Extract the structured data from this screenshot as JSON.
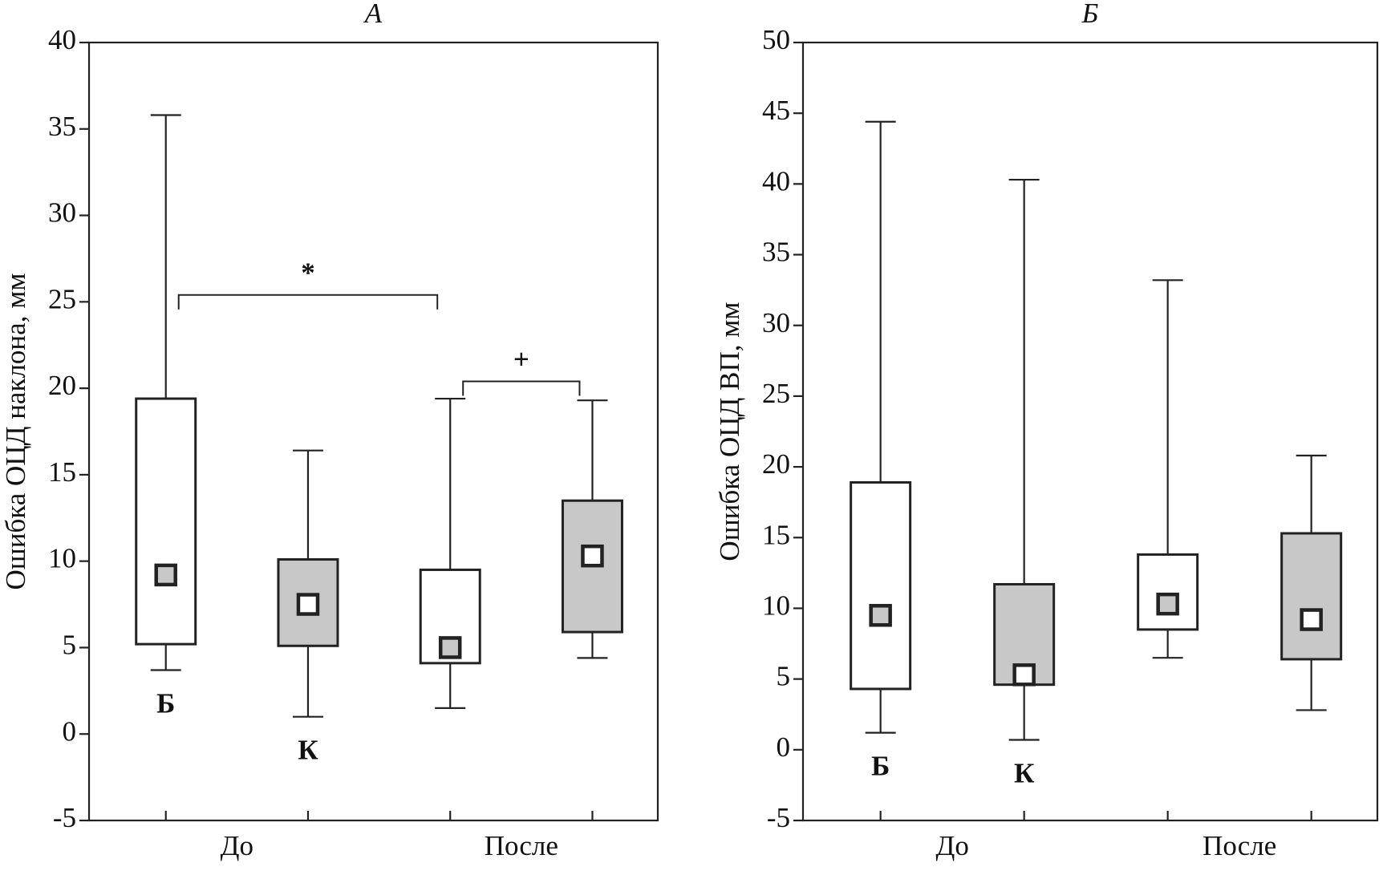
{
  "chart_data": [
    {
      "type": "box",
      "title": "А",
      "y_label": "Ошибка ОЦД наклона, мм",
      "categories": [
        "До",
        "После"
      ],
      "ylim": [
        -5,
        40
      ],
      "yticks": [
        -5,
        0,
        5,
        10,
        15,
        20,
        25,
        30,
        35,
        40
      ],
      "series": [
        {
          "name": "Б",
          "color": "#ffffff",
          "marker_color": "#c8c8c8",
          "low": [
            3.7,
            1.5
          ],
          "q1": [
            5.2,
            4.1
          ],
          "marker": [
            9.2,
            5.0
          ],
          "q3": [
            19.4,
            9.5
          ],
          "high": [
            35.8,
            19.4
          ]
        },
        {
          "name": "К",
          "color": "#c8c8c8",
          "marker_color": "#ffffff",
          "low": [
            1.0,
            4.4
          ],
          "q1": [
            5.1,
            5.9
          ],
          "marker": [
            7.5,
            10.3
          ],
          "q3": [
            10.1,
            13.5
          ],
          "high": [
            16.4,
            19.3
          ]
        }
      ],
      "annotations": [
        {
          "text": "*",
          "y": 25.4,
          "span": [
            0,
            2
          ]
        },
        {
          "text": "+",
          "y": 20.4,
          "span": [
            2,
            3
          ]
        }
      ]
    },
    {
      "type": "box",
      "title": "Б",
      "y_label": "Ошибка ОЦД ВП, мм",
      "categories": [
        "До",
        "После"
      ],
      "ylim": [
        -5,
        50
      ],
      "yticks": [
        -5,
        0,
        5,
        10,
        15,
        20,
        25,
        30,
        35,
        40,
        45,
        50
      ],
      "series": [
        {
          "name": "Б",
          "color": "#ffffff",
          "marker_color": "#c8c8c8",
          "low": [
            1.2,
            6.5
          ],
          "q1": [
            4.3,
            8.5
          ],
          "marker": [
            9.5,
            10.3
          ],
          "q3": [
            18.9,
            13.8
          ],
          "high": [
            44.4,
            33.2
          ]
        },
        {
          "name": "К",
          "color": "#c8c8c8",
          "marker_color": "#ffffff",
          "low": [
            0.7,
            2.8
          ],
          "q1": [
            4.6,
            6.4
          ],
          "marker": [
            5.3,
            9.2
          ],
          "q3": [
            11.7,
            15.3
          ],
          "high": [
            40.3,
            20.8
          ]
        }
      ],
      "annotations": []
    }
  ]
}
